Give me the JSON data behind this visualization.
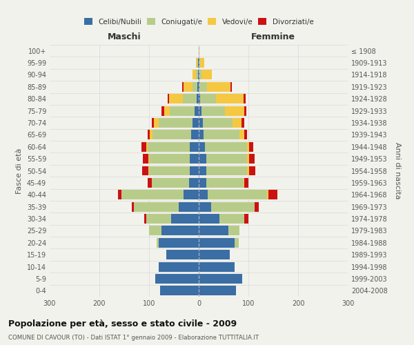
{
  "age_groups": [
    "0-4",
    "5-9",
    "10-14",
    "15-19",
    "20-24",
    "25-29",
    "30-34",
    "35-39",
    "40-44",
    "45-49",
    "50-54",
    "55-59",
    "60-64",
    "65-69",
    "70-74",
    "75-79",
    "80-84",
    "85-89",
    "90-94",
    "95-99",
    "100+"
  ],
  "birth_years": [
    "2004-2008",
    "1999-2003",
    "1994-1998",
    "1989-1993",
    "1984-1988",
    "1979-1983",
    "1974-1978",
    "1969-1973",
    "1964-1968",
    "1959-1963",
    "1954-1958",
    "1949-1953",
    "1944-1948",
    "1939-1943",
    "1934-1938",
    "1929-1933",
    "1924-1928",
    "1919-1923",
    "1914-1918",
    "1909-1913",
    "≤ 1908"
  ],
  "colors": {
    "celibi": "#3a6ea5",
    "coniugati": "#b8cc8a",
    "vedovi": "#f5c842",
    "divorziati": "#cc1111"
  },
  "maschi": {
    "celibi": [
      78,
      88,
      80,
      65,
      80,
      75,
      55,
      40,
      30,
      20,
      18,
      18,
      18,
      15,
      12,
      8,
      4,
      3,
      2,
      1,
      0
    ],
    "coniugati": [
      0,
      0,
      0,
      0,
      5,
      25,
      50,
      90,
      125,
      75,
      82,
      82,
      85,
      78,
      68,
      50,
      28,
      10,
      4,
      2,
      0
    ],
    "vedovi": [
      0,
      0,
      0,
      0,
      0,
      0,
      0,
      0,
      0,
      0,
      2,
      2,
      2,
      5,
      10,
      12,
      28,
      18,
      7,
      2,
      0
    ],
    "divorziati": [
      0,
      0,
      0,
      0,
      0,
      0,
      5,
      5,
      8,
      8,
      12,
      10,
      10,
      5,
      5,
      5,
      2,
      2,
      0,
      0,
      0
    ]
  },
  "femmine": {
    "celibi": [
      75,
      88,
      72,
      62,
      72,
      60,
      42,
      25,
      18,
      15,
      15,
      15,
      12,
      10,
      8,
      5,
      3,
      2,
      1,
      1,
      0
    ],
    "coniugati": [
      0,
      0,
      0,
      0,
      8,
      22,
      50,
      88,
      120,
      75,
      82,
      82,
      85,
      72,
      60,
      48,
      32,
      14,
      4,
      2,
      0
    ],
    "vedovi": [
      0,
      0,
      0,
      0,
      0,
      0,
      0,
      0,
      2,
      2,
      5,
      5,
      5,
      10,
      18,
      38,
      55,
      48,
      22,
      8,
      2
    ],
    "divorziati": [
      0,
      0,
      0,
      0,
      0,
      0,
      8,
      8,
      18,
      8,
      12,
      10,
      8,
      5,
      5,
      5,
      5,
      2,
      0,
      0,
      0
    ]
  },
  "title": "Popolazione per età, sesso e stato civile - 2009",
  "subtitle": "COMUNE DI CAVOUR (TO) - Dati ISTAT 1° gennaio 2009 - Elaborazione TUTTITALIA.IT",
  "label_maschi": "Maschi",
  "label_femmine": "Femmine",
  "ylabel_left": "Fasce di età",
  "ylabel_right": "Anni di nascita",
  "legend_labels": [
    "Celibi/Nubili",
    "Coniugati/e",
    "Vedovi/e",
    "Divorziati/e"
  ],
  "xlim": 300,
  "bg_color": "#f2f2ec"
}
